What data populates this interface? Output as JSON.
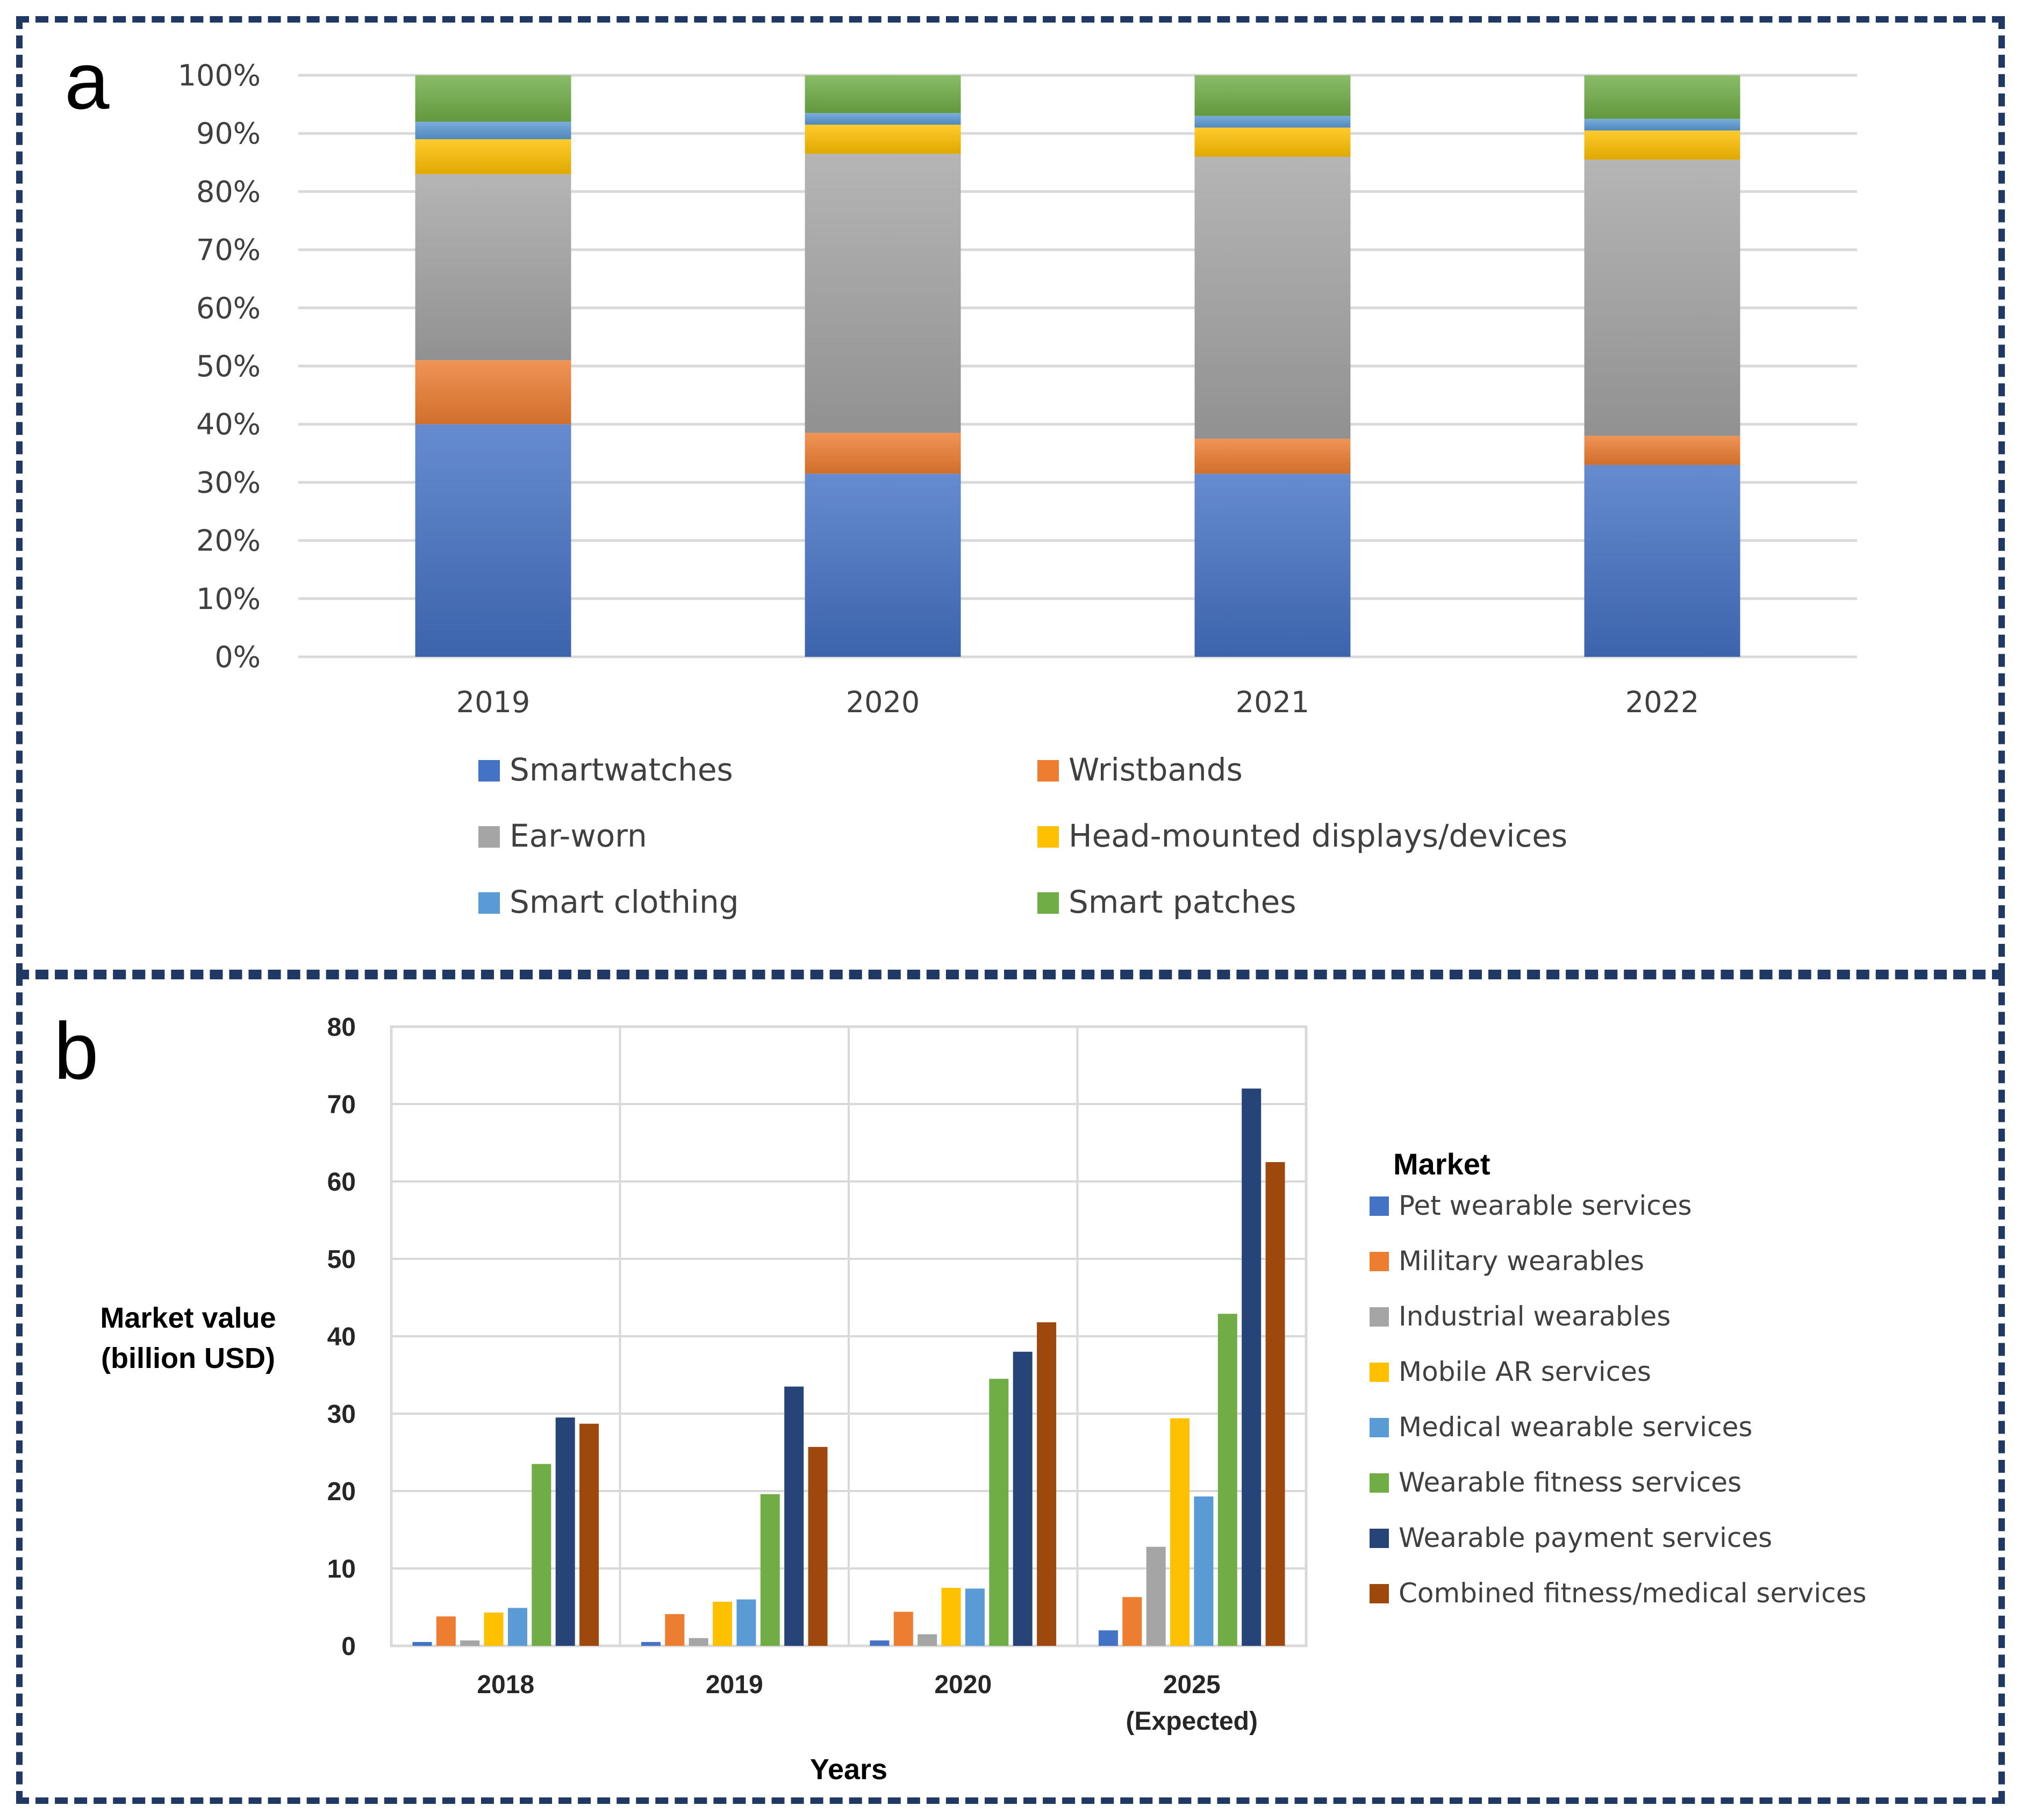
{
  "panel_labels": {
    "a": "a",
    "b": "b"
  },
  "chart_data": [
    {
      "id": "a",
      "type": "bar",
      "stacked": "percent",
      "categories": [
        "2019",
        "2020",
        "2021",
        "2022"
      ],
      "ylim": [
        0,
        100
      ],
      "yticks": [
        "0%",
        "10%",
        "20%",
        "30%",
        "40%",
        "50%",
        "60%",
        "70%",
        "80%",
        "90%",
        "100%"
      ],
      "grid": true,
      "legend_position": "bottom",
      "series": [
        {
          "name": "Smartwatches",
          "color": "#4472C4",
          "values": [
            40,
            31.5,
            31.5,
            33
          ]
        },
        {
          "name": "Wristbands",
          "color": "#ED7D31",
          "values": [
            11,
            7,
            6,
            5
          ]
        },
        {
          "name": "Ear-worn",
          "color": "#A5A5A5",
          "values": [
            32,
            48,
            48.5,
            47.5
          ]
        },
        {
          "name": "Head-mounted displays/devices",
          "color": "#FFC000",
          "values": [
            6,
            5,
            5,
            5
          ]
        },
        {
          "name": "Smart clothing",
          "color": "#5B9BD5",
          "values": [
            3,
            2,
            2,
            2
          ]
        },
        {
          "name": "Smart patches",
          "color": "#70AD47",
          "values": [
            8,
            6.5,
            7,
            7.5
          ]
        }
      ]
    },
    {
      "id": "b",
      "type": "bar",
      "categories": [
        "2018",
        "2019",
        "2020",
        "2025"
      ],
      "category_sublabels": [
        "",
        "",
        "",
        "(Expected)"
      ],
      "ylabel_lines": [
        "Market value",
        "(billion USD)"
      ],
      "xlabel": "Years",
      "ylim": [
        0,
        80
      ],
      "yticks": [
        0,
        10,
        20,
        30,
        40,
        50,
        60,
        70,
        80
      ],
      "grid": true,
      "legend_title": "Market",
      "legend_position": "right",
      "series": [
        {
          "name": "Pet wearable services",
          "color": "#4472C4",
          "values": [
            0.5,
            0.5,
            0.7,
            2
          ]
        },
        {
          "name": "Military wearables",
          "color": "#ED7D31",
          "values": [
            3.8,
            4.1,
            4.4,
            6.3
          ]
        },
        {
          "name": "Industrial wearables",
          "color": "#A5A5A5",
          "values": [
            0.7,
            1,
            1.5,
            12.8
          ]
        },
        {
          "name": "Mobile AR services",
          "color": "#FFC000",
          "values": [
            4.3,
            5.7,
            7.5,
            29.4
          ]
        },
        {
          "name": "Medical wearable services",
          "color": "#5B9BD5",
          "values": [
            4.9,
            6,
            7.4,
            19.3
          ]
        },
        {
          "name": "Wearable fitness services",
          "color": "#70AD47",
          "values": [
            23.5,
            19.6,
            34.5,
            42.9
          ]
        },
        {
          "name": "Wearable payment services",
          "color": "#264478",
          "values": [
            29.5,
            33.5,
            38,
            72
          ]
        },
        {
          "name": "Combined fitness/medical services",
          "color": "#9E480E",
          "values": [
            28.7,
            25.7,
            41.8,
            62.5
          ]
        }
      ]
    }
  ]
}
